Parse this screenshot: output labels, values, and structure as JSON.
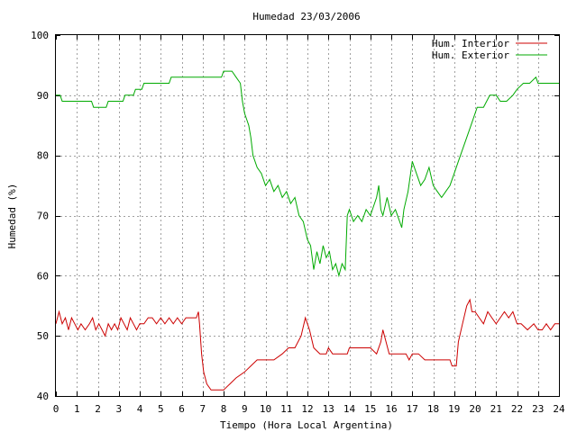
{
  "chart_data": {
    "type": "line",
    "title": "Humedad 23/03/2006",
    "xlabel": "Tiempo (Hora Local Argentina)",
    "ylabel": "Humedad (%)",
    "xlim": [
      0,
      24
    ],
    "ylim": [
      40,
      100
    ],
    "xticks": [
      0,
      1,
      2,
      3,
      4,
      5,
      6,
      7,
      8,
      9,
      10,
      11,
      12,
      13,
      14,
      15,
      16,
      17,
      18,
      19,
      20,
      21,
      22,
      23,
      24
    ],
    "yticks": [
      40,
      50,
      60,
      70,
      80,
      90,
      100
    ],
    "grid": true,
    "legend_position": "top-right",
    "series": [
      {
        "name": "Hum. Interior",
        "color": "#cc0000",
        "points": [
          [
            0,
            52
          ],
          [
            0.15,
            54
          ],
          [
            0.3,
            52
          ],
          [
            0.45,
            53
          ],
          [
            0.6,
            51
          ],
          [
            0.75,
            53
          ],
          [
            0.9,
            52
          ],
          [
            1.05,
            51
          ],
          [
            1.2,
            52
          ],
          [
            1.4,
            51
          ],
          [
            1.6,
            52
          ],
          [
            1.75,
            53
          ],
          [
            1.9,
            51
          ],
          [
            2.05,
            52
          ],
          [
            2.2,
            51
          ],
          [
            2.35,
            50
          ],
          [
            2.5,
            52
          ],
          [
            2.65,
            51
          ],
          [
            2.8,
            52
          ],
          [
            2.95,
            51
          ],
          [
            3.1,
            53
          ],
          [
            3.25,
            52
          ],
          [
            3.4,
            51
          ],
          [
            3.55,
            53
          ],
          [
            3.7,
            52
          ],
          [
            3.85,
            51
          ],
          [
            4.0,
            52
          ],
          [
            4.2,
            52
          ],
          [
            4.4,
            53
          ],
          [
            4.6,
            53
          ],
          [
            4.8,
            52
          ],
          [
            5.0,
            53
          ],
          [
            5.2,
            52
          ],
          [
            5.4,
            53
          ],
          [
            5.6,
            52
          ],
          [
            5.8,
            53
          ],
          [
            6.0,
            52
          ],
          [
            6.2,
            53
          ],
          [
            6.5,
            53
          ],
          [
            6.7,
            53
          ],
          [
            6.8,
            54
          ],
          [
            6.85,
            52
          ],
          [
            6.95,
            47
          ],
          [
            7.05,
            44
          ],
          [
            7.2,
            42
          ],
          [
            7.4,
            41
          ],
          [
            7.7,
            41
          ],
          [
            8.0,
            41
          ],
          [
            8.3,
            42
          ],
          [
            8.6,
            43
          ],
          [
            9.0,
            44
          ],
          [
            9.3,
            45
          ],
          [
            9.6,
            46
          ],
          [
            10.0,
            46
          ],
          [
            10.4,
            46
          ],
          [
            10.8,
            47
          ],
          [
            11.1,
            48
          ],
          [
            11.4,
            48
          ],
          [
            11.7,
            50
          ],
          [
            11.9,
            53
          ],
          [
            12.1,
            51
          ],
          [
            12.3,
            48
          ],
          [
            12.6,
            47
          ],
          [
            12.9,
            47
          ],
          [
            13.0,
            48
          ],
          [
            13.2,
            47
          ],
          [
            13.6,
            47
          ],
          [
            13.9,
            47
          ],
          [
            14.0,
            48
          ],
          [
            14.5,
            48
          ],
          [
            15.0,
            48
          ],
          [
            15.3,
            47
          ],
          [
            15.5,
            49
          ],
          [
            15.6,
            51
          ],
          [
            15.75,
            49
          ],
          [
            15.9,
            47
          ],
          [
            16.3,
            47
          ],
          [
            16.7,
            47
          ],
          [
            16.85,
            46
          ],
          [
            17.0,
            47
          ],
          [
            17.3,
            47
          ],
          [
            17.6,
            46
          ],
          [
            18.0,
            46
          ],
          [
            18.5,
            46
          ],
          [
            18.8,
            46
          ],
          [
            18.9,
            45
          ],
          [
            19.1,
            45
          ],
          [
            19.2,
            49
          ],
          [
            19.4,
            52
          ],
          [
            19.6,
            55
          ],
          [
            19.75,
            56
          ],
          [
            19.85,
            54
          ],
          [
            20.0,
            54
          ],
          [
            20.2,
            53
          ],
          [
            20.4,
            52
          ],
          [
            20.6,
            54
          ],
          [
            20.8,
            53
          ],
          [
            21.0,
            52
          ],
          [
            21.2,
            53
          ],
          [
            21.4,
            54
          ],
          [
            21.6,
            53
          ],
          [
            21.8,
            54
          ],
          [
            22.0,
            52
          ],
          [
            22.2,
            52
          ],
          [
            22.5,
            51
          ],
          [
            22.8,
            52
          ],
          [
            23.0,
            51
          ],
          [
            23.2,
            51
          ],
          [
            23.4,
            52
          ],
          [
            23.6,
            51
          ],
          [
            23.8,
            52
          ],
          [
            24,
            52
          ]
        ]
      },
      {
        "name": "Hum. Exterior",
        "color": "#00aa00",
        "points": [
          [
            0,
            90
          ],
          [
            0.2,
            90
          ],
          [
            0.3,
            89
          ],
          [
            1.0,
            89
          ],
          [
            1.7,
            89
          ],
          [
            1.8,
            88
          ],
          [
            2.4,
            88
          ],
          [
            2.5,
            89
          ],
          [
            3.2,
            89
          ],
          [
            3.3,
            90
          ],
          [
            3.7,
            90
          ],
          [
            3.8,
            91
          ],
          [
            4.1,
            91
          ],
          [
            4.2,
            92
          ],
          [
            5.0,
            92
          ],
          [
            5.4,
            92
          ],
          [
            5.5,
            93
          ],
          [
            6.0,
            93
          ],
          [
            6.5,
            93
          ],
          [
            7.0,
            93
          ],
          [
            7.5,
            93
          ],
          [
            7.9,
            93
          ],
          [
            8.0,
            94
          ],
          [
            8.4,
            94
          ],
          [
            8.6,
            93
          ],
          [
            8.8,
            92
          ],
          [
            8.9,
            89
          ],
          [
            9.0,
            87
          ],
          [
            9.1,
            86
          ],
          [
            9.2,
            85
          ],
          [
            9.3,
            83
          ],
          [
            9.4,
            80
          ],
          [
            9.6,
            78
          ],
          [
            9.8,
            77
          ],
          [
            10.0,
            75
          ],
          [
            10.2,
            76
          ],
          [
            10.4,
            74
          ],
          [
            10.6,
            75
          ],
          [
            10.8,
            73
          ],
          [
            11.0,
            74
          ],
          [
            11.2,
            72
          ],
          [
            11.4,
            73
          ],
          [
            11.6,
            70
          ],
          [
            11.8,
            69
          ],
          [
            12.0,
            66
          ],
          [
            12.15,
            65
          ],
          [
            12.3,
            61
          ],
          [
            12.45,
            64
          ],
          [
            12.6,
            62
          ],
          [
            12.75,
            65
          ],
          [
            12.9,
            63
          ],
          [
            13.05,
            64
          ],
          [
            13.2,
            61
          ],
          [
            13.35,
            62
          ],
          [
            13.5,
            60
          ],
          [
            13.65,
            62
          ],
          [
            13.8,
            61
          ],
          [
            13.9,
            70
          ],
          [
            14.0,
            71
          ],
          [
            14.2,
            69
          ],
          [
            14.4,
            70
          ],
          [
            14.6,
            69
          ],
          [
            14.8,
            71
          ],
          [
            15.0,
            70
          ],
          [
            15.2,
            72
          ],
          [
            15.3,
            73
          ],
          [
            15.4,
            75
          ],
          [
            15.5,
            71
          ],
          [
            15.6,
            70
          ],
          [
            15.8,
            73
          ],
          [
            16.0,
            70
          ],
          [
            16.2,
            71
          ],
          [
            16.4,
            69
          ],
          [
            16.5,
            68
          ],
          [
            16.6,
            71
          ],
          [
            16.8,
            74
          ],
          [
            17.0,
            79
          ],
          [
            17.2,
            77
          ],
          [
            17.4,
            75
          ],
          [
            17.6,
            76
          ],
          [
            17.8,
            78
          ],
          [
            18.0,
            75
          ],
          [
            18.2,
            74
          ],
          [
            18.4,
            73
          ],
          [
            18.6,
            74
          ],
          [
            18.8,
            75
          ],
          [
            19.0,
            77
          ],
          [
            19.2,
            79
          ],
          [
            19.5,
            82
          ],
          [
            19.8,
            85
          ],
          [
            20.1,
            88
          ],
          [
            20.4,
            88
          ],
          [
            20.7,
            90
          ],
          [
            21.0,
            90
          ],
          [
            21.2,
            89
          ],
          [
            21.5,
            89
          ],
          [
            21.8,
            90
          ],
          [
            22.0,
            91
          ],
          [
            22.3,
            92
          ],
          [
            22.6,
            92
          ],
          [
            22.9,
            93
          ],
          [
            23.0,
            92
          ],
          [
            23.4,
            92
          ],
          [
            24,
            92
          ]
        ]
      }
    ]
  }
}
